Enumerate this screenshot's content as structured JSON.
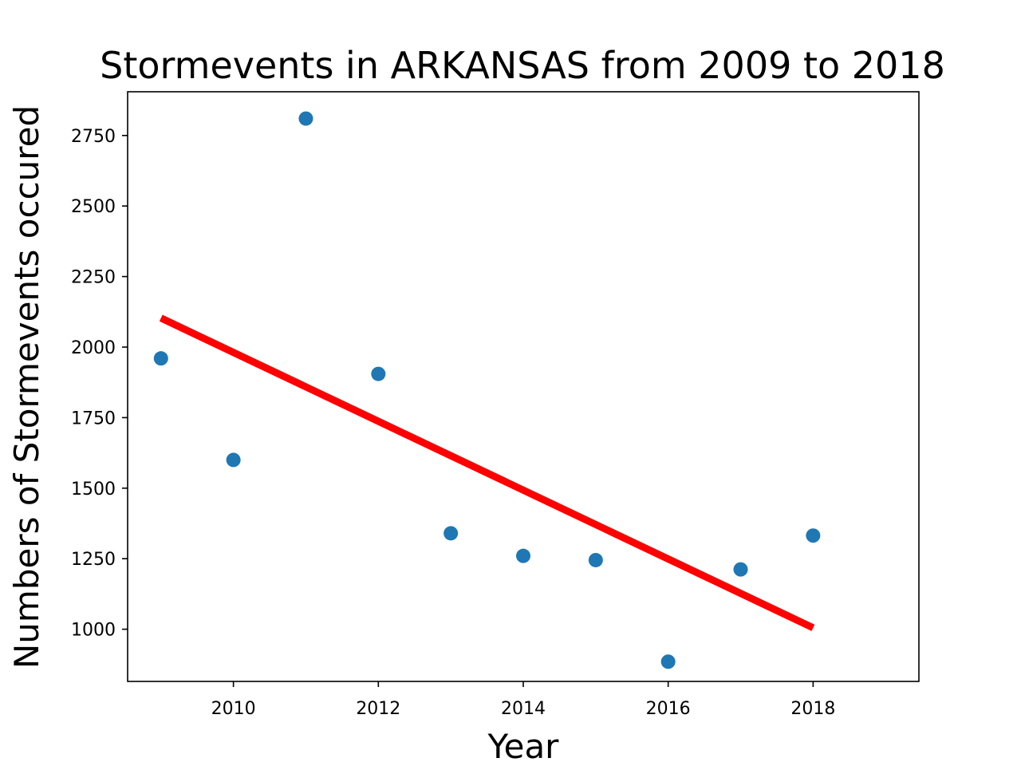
{
  "chart_data": {
    "type": "scatter",
    "title": "Stormevents in ARKANSAS from 2009 to 2018",
    "xlabel": "Year",
    "ylabel": "Numbers of Stormevents occured",
    "x": [
      2009,
      2010,
      2011,
      2012,
      2013,
      2014,
      2015,
      2016,
      2017,
      2018
    ],
    "y": [
      1960,
      1600,
      2810,
      1905,
      1340,
      1260,
      1245,
      885,
      1212,
      1332
    ],
    "xlim": [
      2008.54,
      2019.46
    ],
    "ylim": [
      815,
      2905
    ],
    "xticks": [
      2010,
      2012,
      2014,
      2016,
      2018
    ],
    "yticks": [
      1000,
      1250,
      1500,
      1750,
      2000,
      2250,
      2500,
      2750
    ],
    "trendline": {
      "x": [
        2009,
        2018
      ],
      "y": [
        2103,
        1005
      ]
    },
    "grid": false,
    "colors": {
      "points": "#1f77b4",
      "trendline": "#ff0000",
      "axes": "#000000"
    }
  }
}
